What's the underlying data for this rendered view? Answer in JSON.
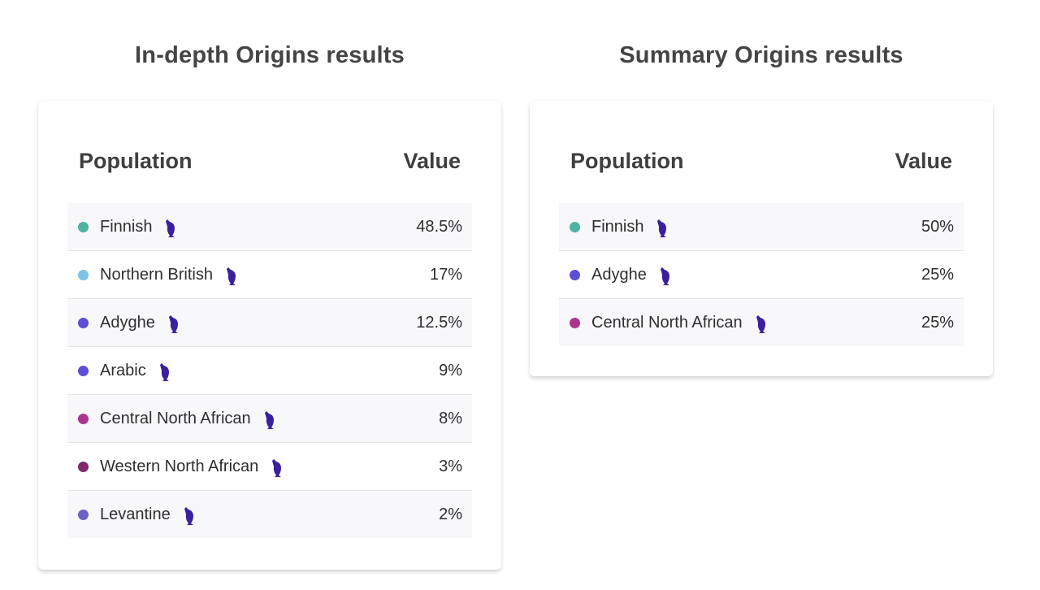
{
  "panels": [
    {
      "title": "In-depth Origins results",
      "headers": {
        "population": "Population",
        "value": "Value"
      },
      "rows": [
        {
          "name": "Finnish",
          "value": "48.5%",
          "color": "#4fb3a0",
          "icon": "owl-icon"
        },
        {
          "name": "Northern British",
          "value": "17%",
          "color": "#7ec3e3",
          "icon": "owl-icon"
        },
        {
          "name": "Adyghe",
          "value": "12.5%",
          "color": "#5b4fd6",
          "icon": "owl-icon"
        },
        {
          "name": "Arabic",
          "value": "9%",
          "color": "#5b4fd6",
          "icon": "owl-icon"
        },
        {
          "name": "Central North African",
          "value": "8%",
          "color": "#a9358f",
          "icon": "owl-icon"
        },
        {
          "name": "Western North African",
          "value": "3%",
          "color": "#7e2a6b",
          "icon": "owl-icon"
        },
        {
          "name": "Levantine",
          "value": "2%",
          "color": "#6d62c4",
          "icon": "owl-icon"
        }
      ]
    },
    {
      "title": "Summary Origins results",
      "headers": {
        "population": "Population",
        "value": "Value"
      },
      "rows": [
        {
          "name": "Finnish",
          "value": "50%",
          "color": "#4fb3a0",
          "icon": "owl-icon"
        },
        {
          "name": "Adyghe",
          "value": "25%",
          "color": "#5b4fd6",
          "icon": "owl-icon"
        },
        {
          "name": "Central North African",
          "value": "25%",
          "color": "#a9358f",
          "icon": "owl-icon"
        }
      ]
    }
  ],
  "icon_color": "#3b1f9e"
}
